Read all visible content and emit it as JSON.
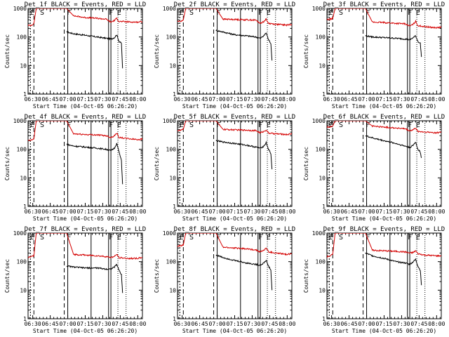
{
  "figure": {
    "background": "#ffffff",
    "axis_color": "#000000",
    "events_color": "#000000",
    "lld_color": "#d40000"
  },
  "shared": {
    "xlabel": "Start Time (04-Oct-05 06:26:20)",
    "ylabel": "Counts/sec",
    "x_tick_labels": [
      "06:30",
      "06:45",
      "07:00",
      "07:15",
      "07:30",
      "07:45",
      "08:00"
    ],
    "y_tick_labels": [
      "1",
      "10",
      "100",
      "1000"
    ],
    "region_labels": [
      "E",
      "S",
      "F",
      "F",
      "E"
    ]
  },
  "chart_data": [
    {
      "type": "line",
      "title": "Det_1f BLACK = Events, RED = LLD",
      "yscale": "log",
      "ylim": [
        1,
        1000
      ],
      "xlim": [
        "06:26",
        "08:04"
      ],
      "series": [
        {
          "color": "#000000",
          "x": [
            "06:59",
            "07:05",
            "07:15",
            "07:25",
            "07:33",
            "07:37",
            "07:40",
            "07:42",
            "07:44",
            "07:46",
            "07:47"
          ],
          "y": [
            150,
            130,
            115,
            100,
            90,
            85,
            95,
            120,
            70,
            60,
            8
          ]
        },
        {
          "color": "#d40000",
          "x": [
            "06:26",
            "06:29",
            "06:31",
            "06:33",
            "06:59",
            "07:05",
            "07:15",
            "07:25",
            "07:33",
            "07:37",
            "07:40",
            "07:42",
            "07:44",
            "07:50",
            "08:00",
            "08:04"
          ],
          "y": [
            250,
            260,
            300,
            1000,
            1000,
            550,
            480,
            450,
            420,
            330,
            380,
            450,
            350,
            340,
            330,
            350
          ]
        }
      ]
    },
    {
      "type": "line",
      "title": "Det_2f BLACK = Events, RED = LLD",
      "yscale": "log",
      "ylim": [
        1,
        1000
      ],
      "xlim": [
        "06:26",
        "08:04"
      ],
      "series": [
        {
          "color": "#000000",
          "x": [
            "06:59",
            "07:05",
            "07:15",
            "07:25",
            "07:33",
            "07:37",
            "07:40",
            "07:42",
            "07:44",
            "07:46",
            "07:47"
          ],
          "y": [
            170,
            150,
            120,
            110,
            100,
            90,
            110,
            140,
            80,
            60,
            15
          ]
        },
        {
          "color": "#d40000",
          "x": [
            "06:26",
            "06:29",
            "06:31",
            "06:33",
            "06:59",
            "07:05",
            "07:15",
            "07:25",
            "07:33",
            "07:37",
            "07:40",
            "07:42",
            "07:44",
            "07:50",
            "08:00",
            "08:04"
          ],
          "y": [
            350,
            360,
            400,
            1000,
            1000,
            420,
            410,
            400,
            390,
            300,
            350,
            420,
            300,
            280,
            260,
            280
          ]
        }
      ]
    },
    {
      "type": "line",
      "title": "Det_3f BLACK = Events, RED = LLD",
      "yscale": "log",
      "ylim": [
        1,
        1000
      ],
      "xlim": [
        "06:26",
        "08:04"
      ],
      "series": [
        {
          "color": "#000000",
          "x": [
            "06:59",
            "07:05",
            "07:15",
            "07:25",
            "07:33",
            "07:37",
            "07:40",
            "07:42",
            "07:44",
            "07:46",
            "07:47"
          ],
          "y": [
            110,
            100,
            95,
            90,
            85,
            80,
            95,
            110,
            70,
            60,
            20
          ]
        },
        {
          "color": "#d40000",
          "x": [
            "06:26",
            "06:29",
            "06:31",
            "06:33",
            "06:59",
            "07:05",
            "07:15",
            "07:25",
            "07:33",
            "07:37",
            "07:40",
            "07:42",
            "07:44",
            "07:50",
            "08:00",
            "08:04"
          ],
          "y": [
            400,
            420,
            450,
            1000,
            1000,
            330,
            320,
            300,
            290,
            240,
            280,
            350,
            250,
            230,
            210,
            220
          ]
        }
      ]
    },
    {
      "type": "line",
      "title": "Det_4f BLACK = Events, RED = LLD",
      "yscale": "log",
      "ylim": [
        1,
        1000
      ],
      "xlim": [
        "06:26",
        "08:04"
      ],
      "series": [
        {
          "color": "#000000",
          "x": [
            "06:59",
            "07:05",
            "07:15",
            "07:25",
            "07:33",
            "07:37",
            "07:40",
            "07:42",
            "07:44",
            "07:46",
            "07:47"
          ],
          "y": [
            150,
            130,
            120,
            110,
            100,
            90,
            110,
            160,
            80,
            40,
            6
          ]
        },
        {
          "color": "#d40000",
          "x": [
            "06:26",
            "06:29",
            "06:31",
            "06:33",
            "06:59",
            "07:05",
            "07:15",
            "07:25",
            "07:33",
            "07:37",
            "07:40",
            "07:42",
            "07:44",
            "07:50",
            "08:00",
            "08:04"
          ],
          "y": [
            200,
            210,
            230,
            1000,
            1000,
            350,
            330,
            320,
            300,
            260,
            300,
            370,
            260,
            240,
            220,
            230
          ]
        }
      ]
    },
    {
      "type": "line",
      "title": "Det_5f BLACK = Events, RED = LLD",
      "yscale": "log",
      "ylim": [
        1,
        1000
      ],
      "xlim": [
        "06:26",
        "08:04"
      ],
      "series": [
        {
          "color": "#000000",
          "x": [
            "06:59",
            "07:05",
            "07:15",
            "07:25",
            "07:33",
            "07:37",
            "07:40",
            "07:42",
            "07:44",
            "07:46",
            "07:47"
          ],
          "y": [
            200,
            180,
            160,
            140,
            120,
            110,
            130,
            170,
            100,
            70,
            20
          ]
        },
        {
          "color": "#d40000",
          "x": [
            "06:26",
            "06:29",
            "06:31",
            "06:33",
            "06:59",
            "07:05",
            "07:15",
            "07:25",
            "07:33",
            "07:37",
            "07:40",
            "07:42",
            "07:44",
            "07:50",
            "08:00",
            "08:04"
          ],
          "y": [
            450,
            460,
            500,
            1000,
            1000,
            500,
            480,
            470,
            450,
            380,
            420,
            480,
            370,
            350,
            330,
            350
          ]
        }
      ]
    },
    {
      "type": "line",
      "title": "Det_6f BLACK = Events, RED = LLD",
      "yscale": "log",
      "ylim": [
        1,
        1000
      ],
      "xlim": [
        "06:26",
        "08:04"
      ],
      "series": [
        {
          "color": "#000000",
          "x": [
            "06:59",
            "07:05",
            "07:15",
            "07:25",
            "07:33",
            "07:37",
            "07:40",
            "07:42",
            "07:44",
            "07:46",
            "07:47"
          ],
          "y": [
            300,
            250,
            200,
            160,
            130,
            115,
            140,
            180,
            100,
            80,
            50
          ]
        },
        {
          "color": "#d40000",
          "x": [
            "06:26",
            "06:29",
            "06:31",
            "06:33",
            "06:59",
            "07:05",
            "07:15",
            "07:25",
            "07:33",
            "07:37",
            "07:40",
            "07:42",
            "07:44",
            "07:50",
            "08:00",
            "08:04"
          ],
          "y": [
            600,
            620,
            650,
            1000,
            1000,
            650,
            600,
            560,
            520,
            440,
            480,
            560,
            420,
            400,
            380,
            400
          ]
        }
      ]
    },
    {
      "type": "line",
      "title": "Det_7f BLACK = Events, RED = LLD",
      "yscale": "log",
      "ylim": [
        1,
        1000
      ],
      "xlim": [
        "06:26",
        "08:04"
      ],
      "series": [
        {
          "color": "#000000",
          "x": [
            "06:59",
            "07:05",
            "07:15",
            "07:25",
            "07:33",
            "07:37",
            "07:40",
            "07:42",
            "07:44",
            "07:46",
            "07:47"
          ],
          "y": [
            70,
            65,
            60,
            60,
            55,
            55,
            65,
            80,
            50,
            35,
            8
          ]
        },
        {
          "color": "#d40000",
          "x": [
            "06:26",
            "06:29",
            "06:31",
            "06:33",
            "06:59",
            "07:05",
            "07:15",
            "07:25",
            "07:33",
            "07:37",
            "07:40",
            "07:42",
            "07:44",
            "07:50",
            "08:00",
            "08:04"
          ],
          "y": [
            140,
            150,
            160,
            1000,
            1000,
            180,
            170,
            160,
            150,
            140,
            150,
            180,
            140,
            130,
            130,
            140
          ]
        }
      ]
    },
    {
      "type": "line",
      "title": "Det_8f BLACK = Events, RED = LLD",
      "yscale": "log",
      "ylim": [
        1,
        1000
      ],
      "xlim": [
        "06:26",
        "08:04"
      ],
      "series": [
        {
          "color": "#000000",
          "x": [
            "06:59",
            "07:05",
            "07:15",
            "07:25",
            "07:33",
            "07:37",
            "07:40",
            "07:42",
            "07:44",
            "07:46",
            "07:47"
          ],
          "y": [
            170,
            140,
            110,
            90,
            80,
            75,
            90,
            110,
            70,
            50,
            10
          ]
        },
        {
          "color": "#d40000",
          "x": [
            "06:26",
            "06:29",
            "06:31",
            "06:33",
            "06:59",
            "07:05",
            "07:15",
            "07:25",
            "07:33",
            "07:37",
            "07:40",
            "07:42",
            "07:44",
            "07:50",
            "08:00",
            "08:04"
          ],
          "y": [
            350,
            360,
            380,
            1000,
            1000,
            320,
            300,
            280,
            260,
            220,
            250,
            300,
            220,
            200,
            180,
            190
          ]
        }
      ]
    },
    {
      "type": "line",
      "title": "Det_9f BLACK = Events, RED = LLD",
      "yscale": "log",
      "ylim": [
        1,
        1000
      ],
      "xlim": [
        "06:26",
        "08:04"
      ],
      "series": [
        {
          "color": "#000000",
          "x": [
            "06:59",
            "07:05",
            "07:15",
            "07:25",
            "07:33",
            "07:37",
            "07:40",
            "07:42",
            "07:44",
            "07:46",
            "07:47"
          ],
          "y": [
            200,
            160,
            130,
            100,
            90,
            80,
            100,
            120,
            70,
            50,
            15
          ]
        },
        {
          "color": "#d40000",
          "x": [
            "06:26",
            "06:29",
            "06:31",
            "06:33",
            "06:59",
            "07:05",
            "07:15",
            "07:25",
            "07:33",
            "07:37",
            "07:40",
            "07:42",
            "07:44",
            "07:50",
            "08:00",
            "08:04"
          ],
          "y": [
            150,
            160,
            180,
            1000,
            1000,
            250,
            240,
            230,
            220,
            200,
            210,
            240,
            190,
            170,
            160,
            160
          ]
        }
      ]
    }
  ]
}
